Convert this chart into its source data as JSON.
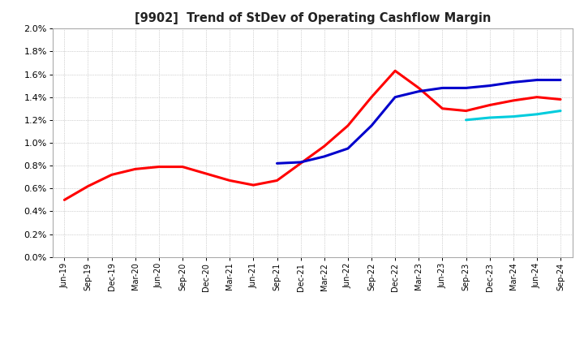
{
  "title": "[9902]  Trend of StDev of Operating Cashflow Margin",
  "background_color": "#ffffff",
  "plot_background_color": "#ffffff",
  "grid_color": "#aaaaaa",
  "ylim": [
    0.0,
    0.02
  ],
  "yticks": [
    0.0,
    0.002,
    0.004,
    0.006,
    0.008,
    0.01,
    0.012,
    0.014,
    0.016,
    0.018,
    0.02
  ],
  "ytick_labels": [
    "0.0%",
    "0.2%",
    "0.4%",
    "0.6%",
    "0.8%",
    "1.0%",
    "1.2%",
    "1.4%",
    "1.6%",
    "1.8%",
    "2.0%"
  ],
  "line_colors": {
    "3yr": "#ff0000",
    "5yr": "#0000cc",
    "7yr": "#00ccdd",
    "10yr": "#007700"
  },
  "line_widths": {
    "3yr": 2.2,
    "5yr": 2.2,
    "7yr": 2.2,
    "10yr": 2.2
  },
  "x_labels": [
    "Jun-19",
    "Sep-19",
    "Dec-19",
    "Mar-20",
    "Jun-20",
    "Sep-20",
    "Dec-20",
    "Mar-21",
    "Jun-21",
    "Sep-21",
    "Dec-21",
    "Mar-22",
    "Jun-22",
    "Sep-22",
    "Dec-22",
    "Mar-23",
    "Jun-23",
    "Sep-23",
    "Dec-23",
    "Mar-24",
    "Jun-24",
    "Sep-24"
  ],
  "series_3yr": [
    0.005,
    0.0062,
    0.0072,
    0.0077,
    0.0079,
    0.0079,
    0.0073,
    0.0067,
    0.0063,
    0.0067,
    0.0082,
    0.0097,
    0.0115,
    0.014,
    0.0163,
    0.0148,
    0.013,
    0.0128,
    0.0133,
    0.0137,
    0.014,
    0.0138
  ],
  "series_5yr": [
    null,
    null,
    null,
    null,
    null,
    null,
    null,
    null,
    null,
    0.0082,
    0.0083,
    0.0088,
    0.0095,
    0.0115,
    0.014,
    0.0145,
    0.0148,
    0.0148,
    0.015,
    0.0153,
    0.0155,
    0.0155
  ],
  "series_7yr": [
    null,
    null,
    null,
    null,
    null,
    null,
    null,
    null,
    null,
    null,
    null,
    null,
    null,
    null,
    null,
    null,
    null,
    0.012,
    0.0122,
    0.0123,
    0.0125,
    0.0128
  ],
  "series_10yr": [
    null,
    null,
    null,
    null,
    null,
    null,
    null,
    null,
    null,
    null,
    null,
    null,
    null,
    null,
    null,
    null,
    null,
    null,
    null,
    null,
    null,
    null
  ]
}
